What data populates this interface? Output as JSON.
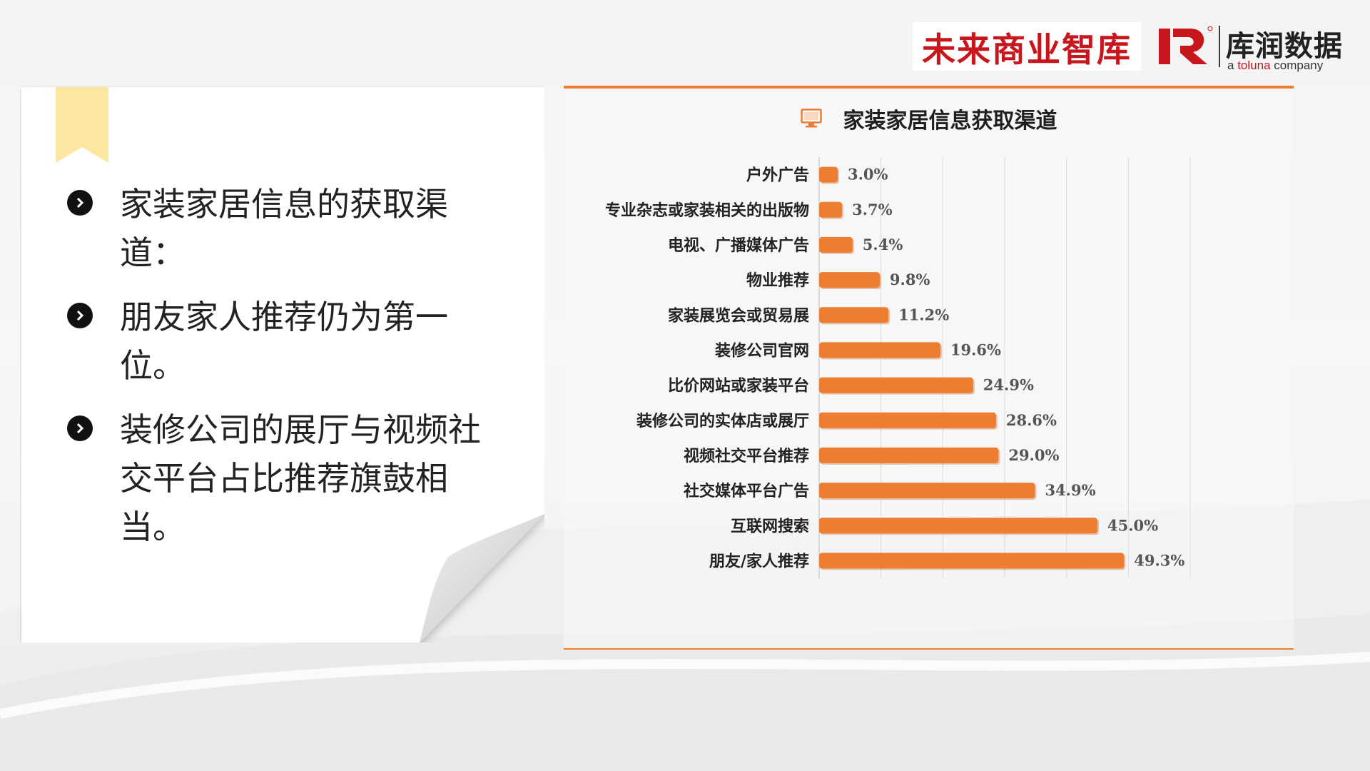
{
  "brand": {
    "left_logo_text": "未来商业智库",
    "right_logo_name": "库润数据",
    "right_logo_sub_prefix": "a",
    "right_logo_sub_brand": "toluna",
    "right_logo_sub_suffix": "company",
    "accent_red": "#c8161d"
  },
  "note": {
    "bullets": [
      {
        "text": "家装家居信息的获取渠道："
      },
      {
        "text": "朋友家人推荐仍为第一位。"
      },
      {
        "text": "装修公司的展厅与视频社交平台占比推荐旗鼓相当。"
      }
    ],
    "bookmark_color": "#fde7a0"
  },
  "chart_data": {
    "type": "bar",
    "orientation": "horizontal",
    "title": "家装家居信息获取渠道",
    "title_icon": "monitor-icon",
    "categories": [
      "户外广告",
      "专业杂志或家装相关的出版物",
      "电视、广播媒体广告",
      "物业推荐",
      "家装展览会或贸易展",
      "装修公司官网",
      "比价网站或家装平台",
      "装修公司的实体店或展厅",
      "视频社交平台推荐",
      "社交媒体平台广告",
      "互联网搜索",
      "朋友/家人推荐"
    ],
    "values": [
      3.0,
      3.7,
      5.4,
      9.8,
      11.2,
      19.6,
      24.9,
      28.6,
      29.0,
      34.9,
      45.0,
      49.3
    ],
    "value_labels": [
      "3.0%",
      "3.7%",
      "5.4%",
      "9.8%",
      "11.2%",
      "19.6%",
      "24.9%",
      "28.6%",
      "29.0%",
      "34.9%",
      "45.0%",
      "49.3%"
    ],
    "unit": "%",
    "xlim": [
      0,
      60
    ],
    "grid": true,
    "legend": "none",
    "bar_color": "#ed7d31",
    "accent_color": "#ec7d31"
  }
}
